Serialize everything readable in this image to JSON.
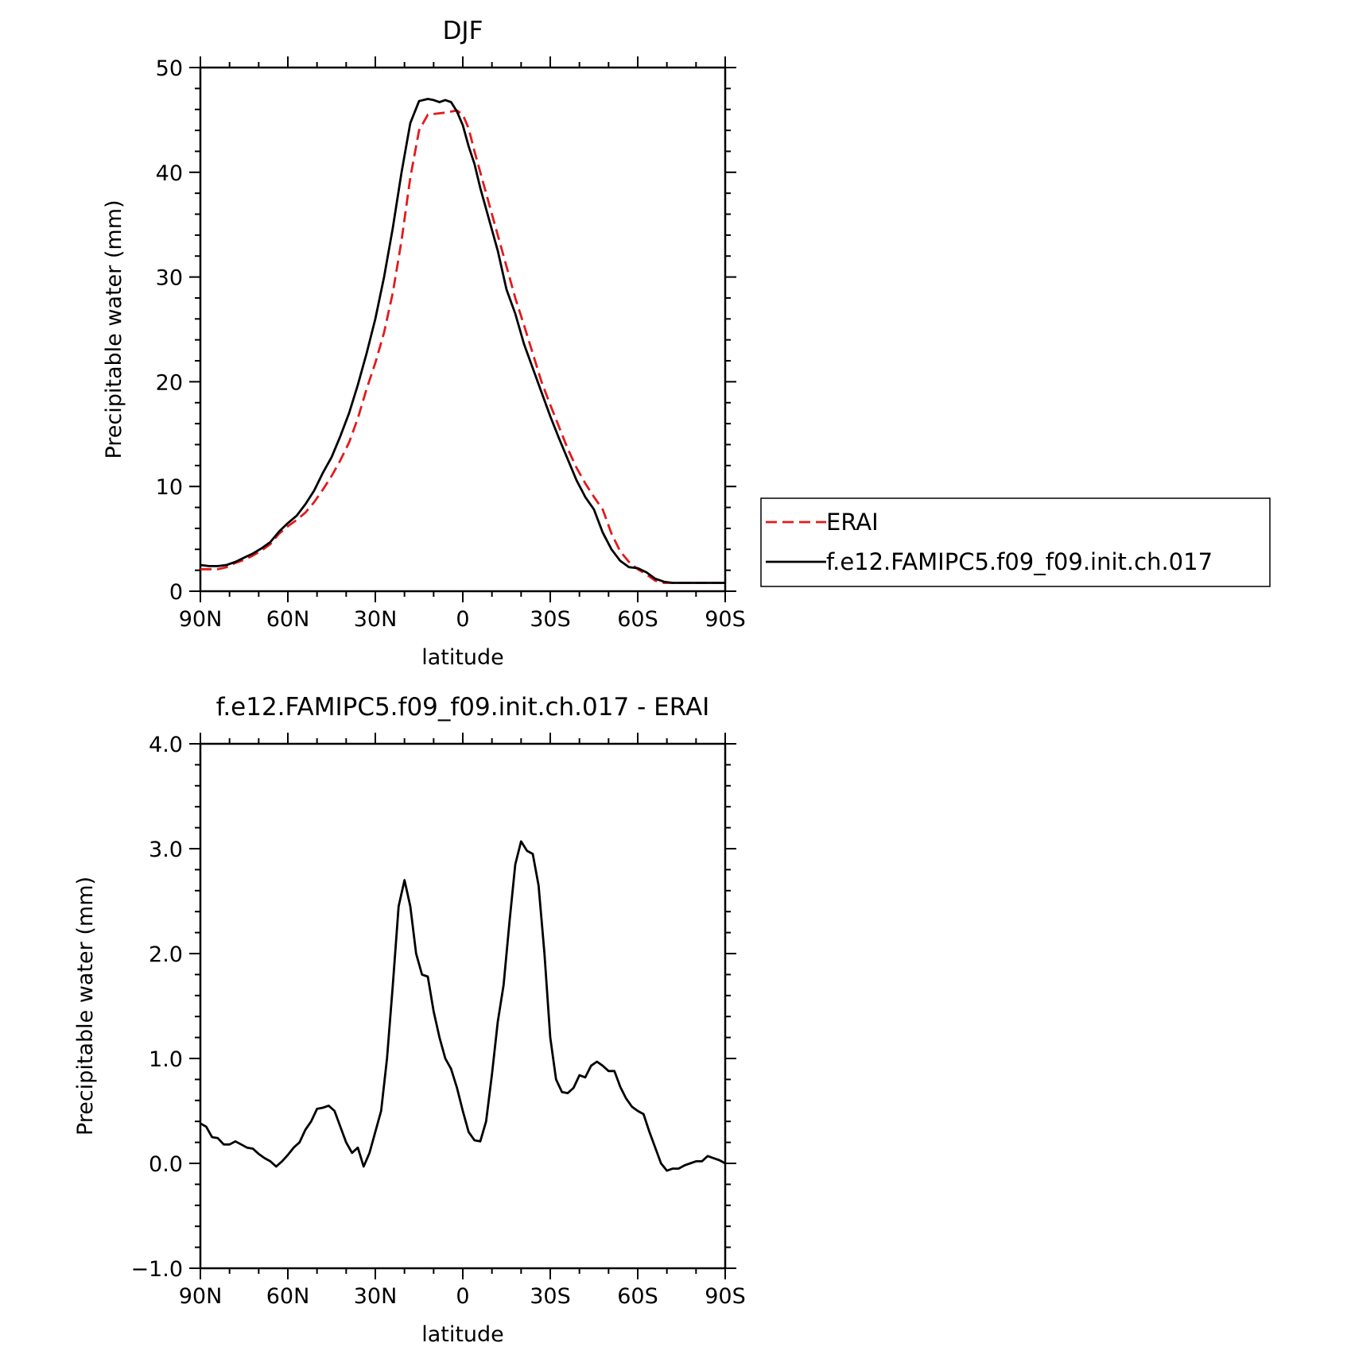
{
  "chart_data": [
    {
      "type": "line",
      "title": "DJF",
      "xlabel": "latitude",
      "ylabel": "Precipitable water (mm)",
      "xlim": [
        90,
        -90
      ],
      "ylim": [
        0,
        50
      ],
      "xticks": [
        90,
        60,
        30,
        0,
        -30,
        -60,
        -90
      ],
      "xtick_labels": [
        "90N",
        "60N",
        "30N",
        "0",
        "30S",
        "60S",
        "90S"
      ],
      "yticks": [
        0,
        10,
        20,
        30,
        40,
        50
      ],
      "ytick_labels": [
        "0",
        "10",
        "20",
        "30",
        "40",
        "50"
      ],
      "legend_position": "right",
      "series": [
        {
          "name": "ERAI",
          "color": "#e31a1c",
          "style": "dashed",
          "x": [
            90,
            87,
            84,
            81,
            78,
            75,
            72,
            69,
            66,
            63,
            60,
            57,
            54,
            51,
            48,
            45,
            42,
            39,
            36,
            33,
            30,
            27,
            24,
            21,
            18,
            15,
            12,
            9,
            6,
            4,
            2,
            0,
            -2,
            -4,
            -6,
            -9,
            -12,
            -15,
            -18,
            -21,
            -24,
            -27,
            -30,
            -33,
            -36,
            -39,
            -42,
            -45,
            -48,
            -51,
            -54,
            -57,
            -60,
            -63,
            -66,
            -69,
            -72,
            -75,
            -78,
            -81,
            -84,
            -87,
            -90
          ],
          "y": [
            2.1,
            2.1,
            2.1,
            2.3,
            2.7,
            3.0,
            3.4,
            3.9,
            4.5,
            5.5,
            6.2,
            6.8,
            7.5,
            8.5,
            9.7,
            11.0,
            12.5,
            14.2,
            16.5,
            19.3,
            21.8,
            24.7,
            28.5,
            33.5,
            39.5,
            44.0,
            45.5,
            45.6,
            45.7,
            45.8,
            45.9,
            45.5,
            44.2,
            42.0,
            40.0,
            37.0,
            34.0,
            31.0,
            28.0,
            25.4,
            22.7,
            20.0,
            17.8,
            15.7,
            13.6,
            11.8,
            10.3,
            9.0,
            7.8,
            5.5,
            3.8,
            2.8,
            2.1,
            1.6,
            1.0,
            0.8,
            0.8,
            0.8,
            0.8,
            0.8,
            0.8,
            0.8,
            0.8
          ]
        },
        {
          "name": "f.e12.FAMIPC5.f09_f09.init.ch.017",
          "color": "#000000",
          "style": "solid",
          "x": [
            90,
            87,
            84,
            81,
            78,
            75,
            72,
            69,
            66,
            63,
            60,
            57,
            54,
            51,
            48,
            45,
            42,
            39,
            36,
            33,
            30,
            27,
            24,
            21,
            18,
            15,
            12,
            10,
            8,
            6,
            4,
            2,
            0,
            -2,
            -4,
            -6,
            -9,
            -12,
            -15,
            -18,
            -21,
            -24,
            -27,
            -30,
            -33,
            -36,
            -39,
            -42,
            -45,
            -48,
            -51,
            -54,
            -57,
            -60,
            -63,
            -66,
            -69,
            -72,
            -75,
            -78,
            -81,
            -84,
            -87,
            -90
          ],
          "y": [
            2.5,
            2.4,
            2.4,
            2.5,
            2.8,
            3.2,
            3.6,
            4.1,
            4.7,
            5.7,
            6.5,
            7.2,
            8.3,
            9.6,
            11.3,
            12.8,
            14.8,
            17.0,
            19.7,
            22.7,
            26.0,
            30.0,
            34.7,
            40.0,
            44.7,
            46.8,
            47.0,
            46.9,
            46.7,
            46.9,
            46.7,
            45.8,
            44.5,
            42.5,
            40.8,
            38.5,
            35.5,
            32.5,
            28.8,
            26.5,
            23.6,
            21.3,
            19.0,
            16.7,
            14.6,
            12.6,
            10.6,
            9.0,
            7.8,
            5.6,
            4.0,
            2.9,
            2.3,
            2.2,
            1.8,
            1.2,
            0.9,
            0.8,
            0.8,
            0.8,
            0.8,
            0.8,
            0.8,
            0.8
          ]
        }
      ]
    },
    {
      "type": "line",
      "title": "f.e12.FAMIPC5.f09_f09.init.ch.017 - ERAI",
      "xlabel": "latitude",
      "ylabel": "Precipitable water (mm)",
      "xlim": [
        90,
        -90
      ],
      "ylim": [
        -1.0,
        4.0
      ],
      "xticks": [
        90,
        60,
        30,
        0,
        -30,
        -60,
        -90
      ],
      "xtick_labels": [
        "90N",
        "60N",
        "30N",
        "0",
        "30S",
        "60S",
        "90S"
      ],
      "yticks": [
        -1.0,
        0.0,
        1.0,
        2.0,
        3.0,
        4.0
      ],
      "ytick_labels": [
        "−1.0",
        "0.0",
        "1.0",
        "2.0",
        "3.0",
        "4.0"
      ],
      "series": [
        {
          "color": "#000000",
          "style": "solid",
          "x": [
            90,
            88,
            86,
            84,
            82,
            80,
            78,
            76,
            74,
            72,
            70,
            68,
            66,
            64,
            62,
            60,
            58,
            56,
            54,
            52,
            50,
            48,
            46,
            44,
            42,
            40,
            38,
            36,
            34,
            32,
            30,
            28,
            26,
            24,
            22,
            20,
            18,
            16,
            14,
            12,
            10,
            8,
            6,
            4,
            2,
            0,
            -2,
            -4,
            -6,
            -8,
            -10,
            -12,
            -14,
            -16,
            -18,
            -20,
            -22,
            -24,
            -26,
            -28,
            -30,
            -32,
            -34,
            -36,
            -38,
            -40,
            -42,
            -44,
            -46,
            -48,
            -50,
            -52,
            -54,
            -56,
            -58,
            -60,
            -62,
            -64,
            -66,
            -68,
            -70,
            -72,
            -74,
            -76,
            -78,
            -80,
            -82,
            -84,
            -86,
            -88,
            -90
          ],
          "y": [
            0.38,
            0.35,
            0.25,
            0.24,
            0.18,
            0.18,
            0.21,
            0.18,
            0.15,
            0.14,
            0.09,
            0.05,
            0.02,
            -0.03,
            0.02,
            0.08,
            0.15,
            0.2,
            0.32,
            0.4,
            0.52,
            0.53,
            0.55,
            0.5,
            0.35,
            0.2,
            0.1,
            0.15,
            -0.03,
            0.1,
            0.3,
            0.5,
            1.0,
            1.7,
            2.45,
            2.7,
            2.45,
            2.0,
            1.8,
            1.78,
            1.45,
            1.2,
            1.0,
            0.9,
            0.72,
            0.5,
            0.3,
            0.22,
            0.21,
            0.4,
            0.85,
            1.35,
            1.7,
            2.3,
            2.85,
            3.07,
            2.98,
            2.95,
            2.65,
            2.0,
            1.2,
            0.8,
            0.68,
            0.67,
            0.72,
            0.84,
            0.82,
            0.93,
            0.97,
            0.93,
            0.88,
            0.88,
            0.73,
            0.62,
            0.54,
            0.5,
            0.47,
            0.3,
            0.15,
            0.0,
            -0.07,
            -0.05,
            -0.05,
            -0.02,
            0.0,
            0.02,
            0.02,
            0.07,
            0.05,
            0.03,
            0.0
          ]
        }
      ]
    }
  ]
}
